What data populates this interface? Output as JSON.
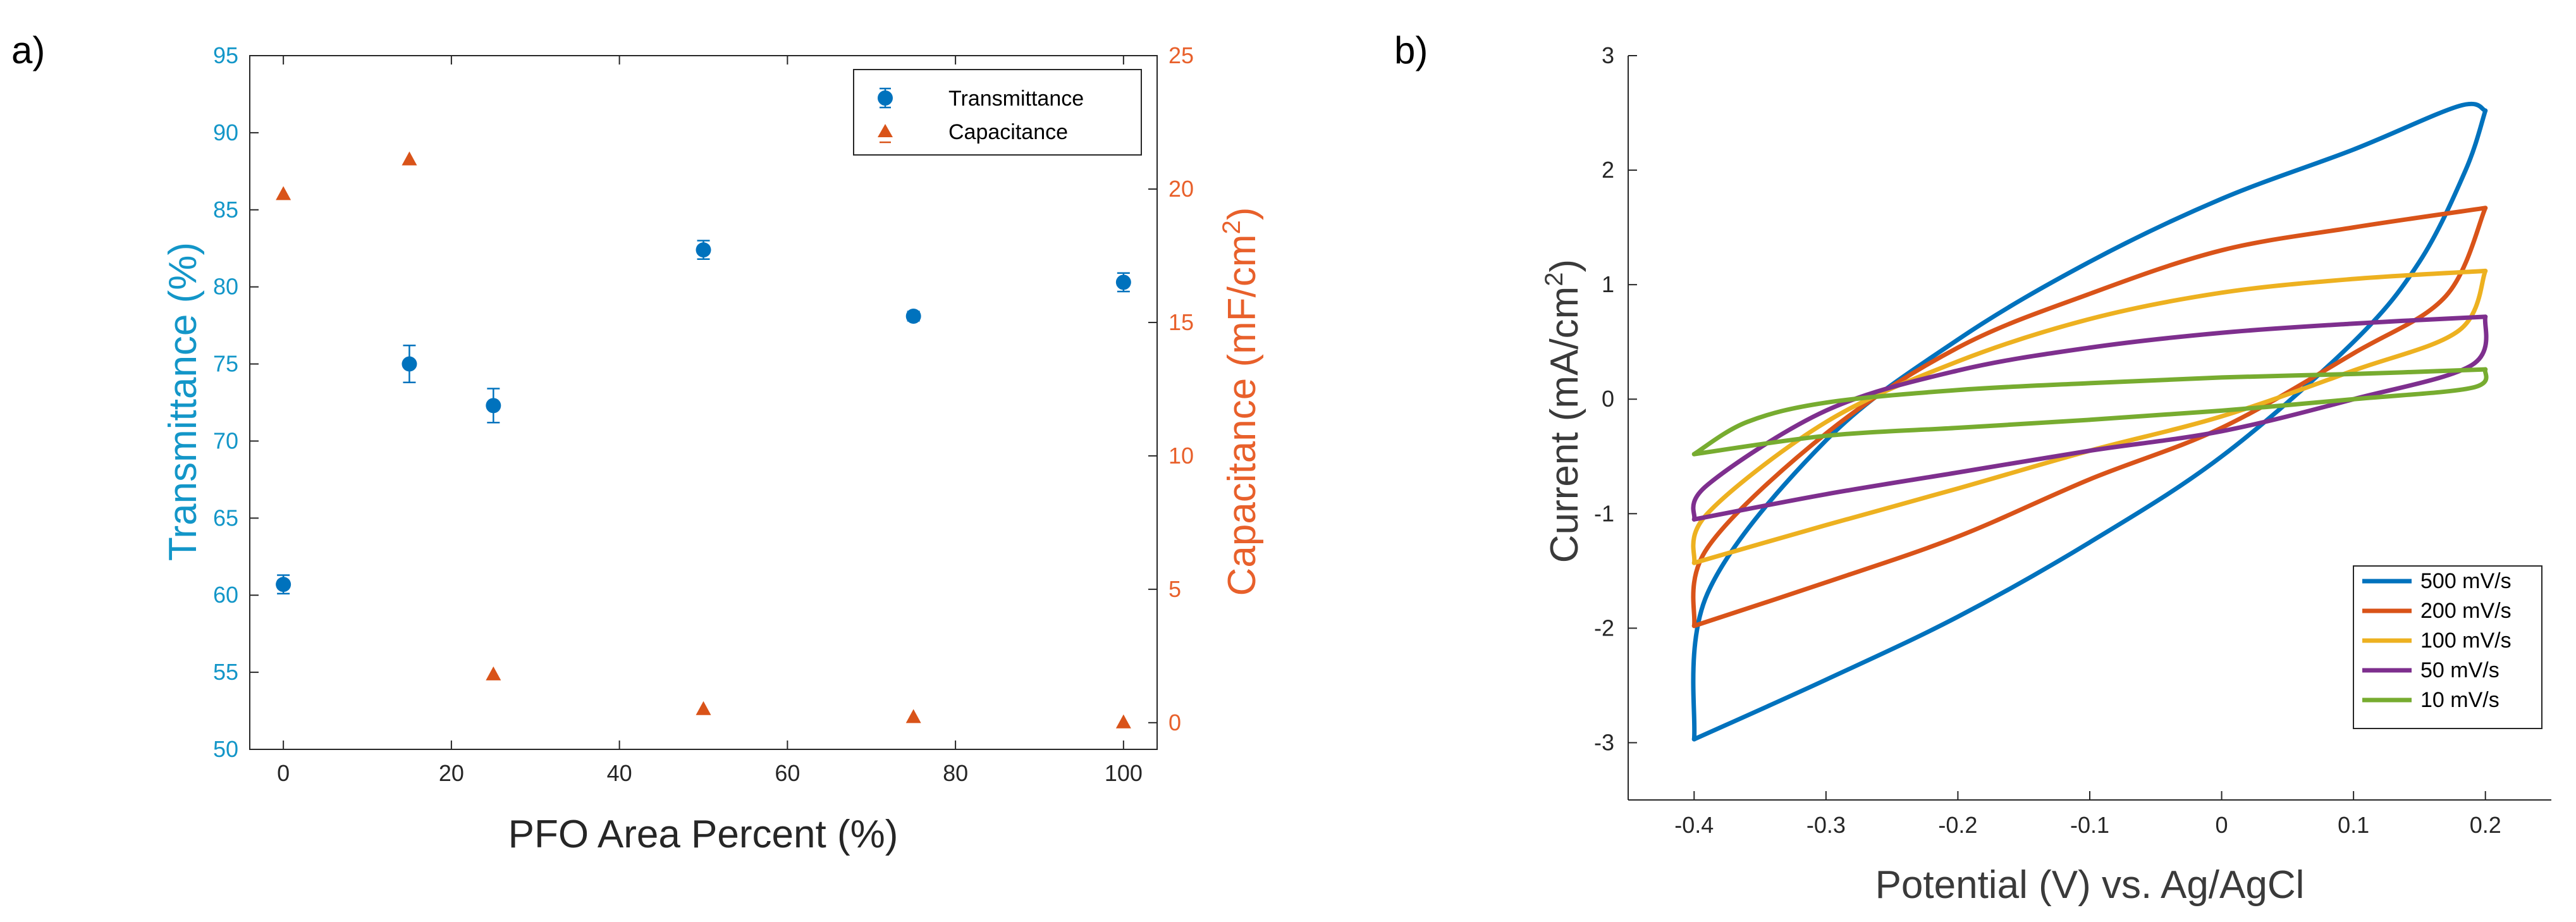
{
  "colors": {
    "blue": "#0072BD",
    "orange": "#D95319",
    "yellow": "#EDB120",
    "purple": "#7E2F8E",
    "green": "#77AC30",
    "axis": "#262626",
    "left_axis_text": "#1396C8",
    "right_axis_text": "#E8602B"
  },
  "chart_data": [
    {
      "panel_label": "a)",
      "type": "scatter",
      "xlabel": "PFO Area Percent (%)",
      "ylabel_left": "Transmittance (%)",
      "ylabel_right_main": "Capacitance (mF/cm",
      "ylabel_right_sup": "2",
      "ylabel_right_end": ")",
      "xlim": [
        -4,
        104
      ],
      "ylim_left": [
        50,
        95
      ],
      "ylim_right": [
        -1,
        25
      ],
      "xticks": [
        "0",
        "20",
        "40",
        "60",
        "80",
        "100"
      ],
      "xtick_values": [
        0,
        20,
        40,
        60,
        80,
        100
      ],
      "yticks_left": [
        "50",
        "55",
        "60",
        "65",
        "70",
        "75",
        "80",
        "85",
        "90",
        "95"
      ],
      "ytick_values_left": [
        50,
        55,
        60,
        65,
        70,
        75,
        80,
        85,
        90,
        95
      ],
      "yticks_right": [
        "0",
        "5",
        "10",
        "15",
        "20",
        "25"
      ],
      "ytick_values_right": [
        0,
        5,
        10,
        15,
        20,
        25
      ],
      "legend": [
        "Transmittance",
        "Capacitance"
      ],
      "series": [
        {
          "name": "Transmittance",
          "axis": "left",
          "marker": "circle",
          "x": [
            0,
            15,
            25,
            50,
            75,
            100
          ],
          "y": [
            60.7,
            75.0,
            72.3,
            82.4,
            78.1,
            80.3
          ],
          "err": [
            0.6,
            1.2,
            1.1,
            0.6,
            0.3,
            0.6
          ]
        },
        {
          "name": "Capacitance",
          "axis": "right",
          "marker": "triangle",
          "x": [
            0,
            15,
            25,
            50,
            75,
            100
          ],
          "y": [
            19.8,
            21.1,
            1.8,
            0.5,
            0.2,
            0.0
          ]
        }
      ]
    },
    {
      "panel_label": "b)",
      "type": "line",
      "xlabel": "Potential (V) vs. Ag/AgCl",
      "ylabel_main": "Current (mA/cm",
      "ylabel_sup": "2",
      "ylabel_end": ")",
      "xlim": [
        -0.45,
        0.25
      ],
      "ylim": [
        -3.5,
        3
      ],
      "xticks": [
        "-0.4",
        "-0.3",
        "-0.2",
        "-0.1",
        "0",
        "0.1",
        "0.2"
      ],
      "xtick_values": [
        -0.4,
        -0.3,
        -0.2,
        -0.1,
        0,
        0.1,
        0.2
      ],
      "yticks": [
        "-3",
        "-2",
        "-1",
        "0",
        "1",
        "2",
        "3"
      ],
      "ytick_values": [
        -3,
        -2,
        -1,
        0,
        1,
        2,
        3
      ],
      "legend": [
        "500 mV/s",
        "200 mV/s",
        "100 mV/s",
        "50 mV/s",
        "10 mV/s"
      ],
      "series": [
        {
          "name": "500 mV/s",
          "color_key": "blue",
          "upper": [
            [
              -0.4,
              -2.97
            ],
            [
              -0.39,
              -1.7
            ],
            [
              -0.3,
              -0.36
            ],
            [
              -0.2,
              0.52
            ],
            [
              -0.1,
              1.2
            ],
            [
              0.0,
              1.75
            ],
            [
              0.1,
              2.18
            ],
            [
              0.18,
              2.56
            ],
            [
              0.2,
              2.52
            ]
          ],
          "lower": [
            [
              -0.4,
              -2.97
            ],
            [
              -0.3,
              -2.45
            ],
            [
              -0.2,
              -1.9
            ],
            [
              -0.1,
              -1.25
            ],
            [
              0.0,
              -0.5
            ],
            [
              0.1,
              0.5
            ],
            [
              0.15,
              1.2
            ],
            [
              0.185,
              2.0
            ],
            [
              0.2,
              2.52
            ]
          ]
        },
        {
          "name": "200 mV/s",
          "color_key": "orange",
          "upper": [
            [
              -0.4,
              -1.98
            ],
            [
              -0.39,
              -1.3
            ],
            [
              -0.3,
              -0.3
            ],
            [
              -0.2,
              0.45
            ],
            [
              -0.1,
              0.92
            ],
            [
              0.0,
              1.3
            ],
            [
              0.1,
              1.5
            ],
            [
              0.2,
              1.67
            ]
          ],
          "lower": [
            [
              -0.4,
              -1.98
            ],
            [
              -0.3,
              -1.6
            ],
            [
              -0.2,
              -1.2
            ],
            [
              -0.1,
              -0.7
            ],
            [
              0.0,
              -0.25
            ],
            [
              0.1,
              0.4
            ],
            [
              0.17,
              0.9
            ],
            [
              0.2,
              1.67
            ]
          ]
        },
        {
          "name": "100 mV/s",
          "color_key": "yellow",
          "upper": [
            [
              -0.4,
              -1.43
            ],
            [
              -0.39,
              -1.0
            ],
            [
              -0.3,
              -0.2
            ],
            [
              -0.2,
              0.33
            ],
            [
              -0.1,
              0.7
            ],
            [
              0.0,
              0.93
            ],
            [
              0.1,
              1.05
            ],
            [
              0.2,
              1.12
            ]
          ],
          "lower": [
            [
              -0.4,
              -1.43
            ],
            [
              -0.3,
              -1.1
            ],
            [
              -0.2,
              -0.78
            ],
            [
              -0.1,
              -0.45
            ],
            [
              0.0,
              -0.15
            ],
            [
              0.1,
              0.25
            ],
            [
              0.18,
              0.6
            ],
            [
              0.2,
              1.12
            ]
          ]
        },
        {
          "name": "50 mV/s",
          "color_key": "purple",
          "upper": [
            [
              -0.4,
              -1.05
            ],
            [
              -0.39,
              -0.75
            ],
            [
              -0.3,
              -0.1
            ],
            [
              -0.2,
              0.25
            ],
            [
              -0.1,
              0.45
            ],
            [
              0.0,
              0.58
            ],
            [
              0.1,
              0.66
            ],
            [
              0.2,
              0.72
            ]
          ],
          "lower": [
            [
              -0.4,
              -1.05
            ],
            [
              -0.3,
              -0.83
            ],
            [
              -0.2,
              -0.64
            ],
            [
              -0.1,
              -0.45
            ],
            [
              0.0,
              -0.28
            ],
            [
              0.1,
              0.0
            ],
            [
              0.19,
              0.3
            ],
            [
              0.2,
              0.72
            ]
          ]
        },
        {
          "name": "10 mV/s",
          "color_key": "green",
          "upper": [
            [
              -0.4,
              -0.48
            ],
            [
              -0.36,
              -0.2
            ],
            [
              -0.3,
              -0.03
            ],
            [
              -0.2,
              0.08
            ],
            [
              -0.1,
              0.14
            ],
            [
              0.0,
              0.19
            ],
            [
              0.1,
              0.22
            ],
            [
              0.2,
              0.26
            ]
          ],
          "lower": [
            [
              -0.4,
              -0.48
            ],
            [
              -0.3,
              -0.32
            ],
            [
              -0.2,
              -0.25
            ],
            [
              -0.1,
              -0.18
            ],
            [
              0.0,
              -0.1
            ],
            [
              0.1,
              0.0
            ],
            [
              0.19,
              0.1
            ],
            [
              0.2,
              0.26
            ]
          ]
        }
      ]
    }
  ]
}
